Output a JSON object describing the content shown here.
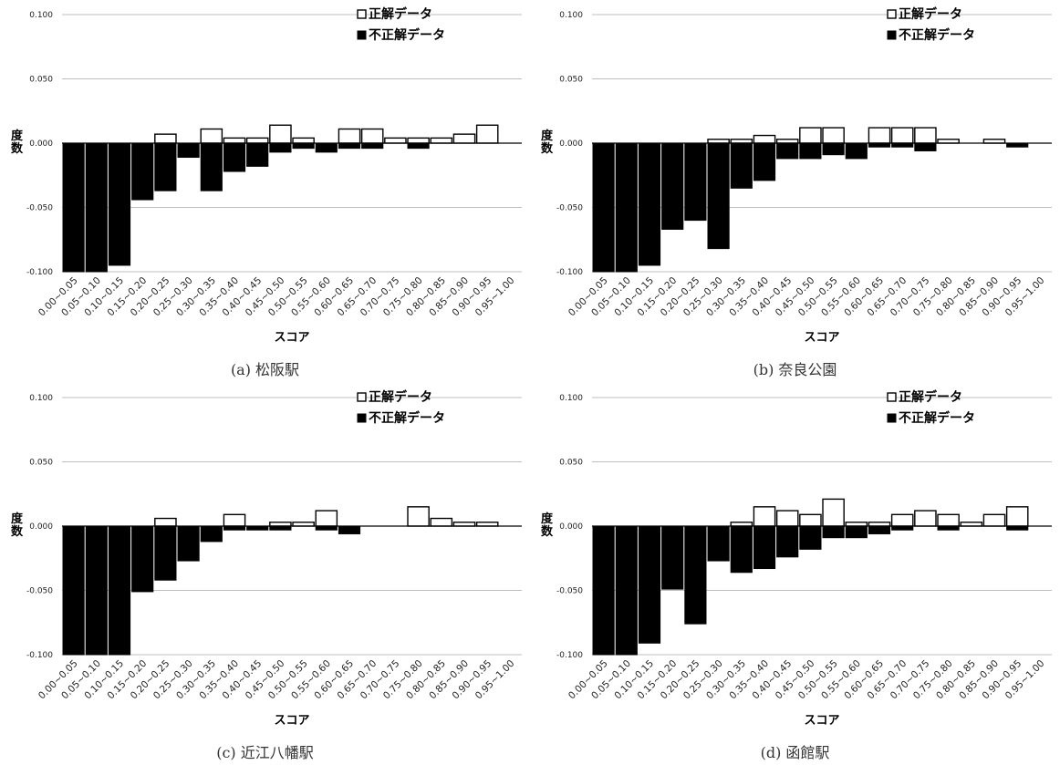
{
  "chart_data": [
    {
      "type": "bar",
      "caption": "(a) 松阪駅",
      "ylabel": "度数",
      "xlabel": "スコア",
      "ylim": [
        -0.1,
        0.1
      ],
      "yticks": [
        "0.100",
        "0.050",
        "0.000",
        "-0.050",
        "-0.100"
      ],
      "legend_position": "top-right",
      "grid": true,
      "categories": [
        "0.00~0.05",
        "0.05~0.10",
        "0.10~0.15",
        "0.15~0.20",
        "0.20~0.25",
        "0.25~0.30",
        "0.30~0.35",
        "0.35~0.40",
        "0.40~0.45",
        "0.45~0.50",
        "0.50~0.55",
        "0.55~0.60",
        "0.60~0.65",
        "0.65~0.70",
        "0.70~0.75",
        "0.75~0.80",
        "0.80~0.85",
        "0.85~0.90",
        "0.90~0.95",
        "0.95~1.00"
      ],
      "series": [
        {
          "name": "正解データ",
          "color": "#ffffff",
          "values": [
            0,
            0,
            0,
            0,
            0.007,
            0,
            0.011,
            0.004,
            0.004,
            0.014,
            0.004,
            0,
            0.011,
            0.011,
            0.004,
            0.004,
            0.004,
            0.007,
            0.014,
            0
          ]
        },
        {
          "name": "不正解データ",
          "color": "#000000",
          "values": [
            -0.1,
            -0.1,
            -0.095,
            -0.044,
            -0.037,
            -0.011,
            -0.037,
            -0.022,
            -0.018,
            -0.007,
            -0.004,
            -0.007,
            -0.004,
            -0.004,
            0,
            -0.004,
            0,
            0,
            0,
            0
          ]
        }
      ]
    },
    {
      "type": "bar",
      "caption": "(b) 奈良公園",
      "ylabel": "度数",
      "xlabel": "スコア",
      "ylim": [
        -0.1,
        0.1
      ],
      "yticks": [
        "0.100",
        "0.050",
        "0.000",
        "-0.050",
        "-0.100"
      ],
      "legend_position": "top-right",
      "grid": true,
      "categories": [
        "0.00~0.05",
        "0.05~0.10",
        "0.10~0.15",
        "0.15~0.20",
        "0.20~0.25",
        "0.25~0.30",
        "0.30~0.35",
        "0.35~0.40",
        "0.40~0.45",
        "0.45~0.50",
        "0.50~0.55",
        "0.55~0.60",
        "0.60~0.65",
        "0.65~0.70",
        "0.70~0.75",
        "0.75~0.80",
        "0.80~0.85",
        "0.85~0.90",
        "0.90~0.95",
        "0.95~1.00"
      ],
      "series": [
        {
          "name": "正解データ",
          "color": "#ffffff",
          "values": [
            0,
            0,
            0,
            0,
            0,
            0.003,
            0.003,
            0.006,
            0.003,
            0.012,
            0.012,
            0,
            0.012,
            0.012,
            0.012,
            0.003,
            0,
            0.003,
            0,
            0
          ]
        },
        {
          "name": "不正解データ",
          "color": "#000000",
          "values": [
            -0.1,
            -0.1,
            -0.095,
            -0.067,
            -0.06,
            -0.082,
            -0.035,
            -0.029,
            -0.012,
            -0.012,
            -0.009,
            -0.012,
            -0.003,
            -0.003,
            -0.006,
            0,
            0,
            0,
            -0.003,
            0
          ]
        }
      ]
    },
    {
      "type": "bar",
      "caption": "(c) 近江八幡駅",
      "ylabel": "度数",
      "xlabel": "スコア",
      "ylim": [
        -0.1,
        0.1
      ],
      "yticks": [
        "0.100",
        "0.050",
        "0.000",
        "-0.050",
        "-0.100"
      ],
      "legend_position": "top-right",
      "grid": true,
      "categories": [
        "0.00~0.05",
        "0.05~0.10",
        "0.10~0.15",
        "0.15~0.20",
        "0.20~0.25",
        "0.25~0.30",
        "0.30~0.35",
        "0.35~0.40",
        "0.40~0.45",
        "0.45~0.50",
        "0.50~0.55",
        "0.55~0.60",
        "0.60~0.65",
        "0.65~0.70",
        "0.70~0.75",
        "0.75~0.80",
        "0.80~0.85",
        "0.85~0.90",
        "0.90~0.95",
        "0.95~1.00"
      ],
      "series": [
        {
          "name": "正解データ",
          "color": "#ffffff",
          "values": [
            0,
            0,
            0,
            0,
            0.006,
            0,
            0,
            0.009,
            0,
            0.003,
            0.003,
            0.012,
            0,
            0,
            0,
            0.015,
            0.006,
            0.003,
            0.003,
            0
          ]
        },
        {
          "name": "不正解データ",
          "color": "#000000",
          "values": [
            -0.1,
            -0.1,
            -0.1,
            -0.051,
            -0.042,
            -0.027,
            -0.012,
            -0.003,
            -0.003,
            -0.003,
            0,
            -0.003,
            -0.006,
            0,
            0,
            0,
            0,
            0,
            0,
            0
          ]
        }
      ]
    },
    {
      "type": "bar",
      "caption": "(d) 函館駅",
      "ylabel": "度数",
      "xlabel": "スコア",
      "ylim": [
        -0.1,
        0.1
      ],
      "yticks": [
        "0.100",
        "0.050",
        "0.000",
        "-0.050",
        "-0.100"
      ],
      "legend_position": "top-right",
      "grid": true,
      "categories": [
        "0.00~0.05",
        "0.05~0.10",
        "0.10~0.15",
        "0.15~0.20",
        "0.20~0.25",
        "0.25~0.30",
        "0.30~0.35",
        "0.35~0.40",
        "0.40~0.45",
        "0.45~0.50",
        "0.50~0.55",
        "0.55~0.60",
        "0.60~0.65",
        "0.65~0.70",
        "0.70~0.75",
        "0.75~0.80",
        "0.80~0.85",
        "0.85~0.90",
        "0.90~0.95",
        "0.95~1.00"
      ],
      "series": [
        {
          "name": "正解データ",
          "color": "#ffffff",
          "values": [
            0,
            0,
            0,
            0,
            0,
            0,
            0.003,
            0.015,
            0.012,
            0.009,
            0.021,
            0.003,
            0.003,
            0.009,
            0.012,
            0.009,
            0.003,
            0.009,
            0.015,
            0
          ]
        },
        {
          "name": "不正解データ",
          "color": "#000000",
          "values": [
            -0.1,
            -0.1,
            -0.091,
            -0.049,
            -0.076,
            -0.027,
            -0.036,
            -0.033,
            -0.024,
            -0.018,
            -0.009,
            -0.009,
            -0.006,
            -0.003,
            0,
            -0.003,
            0,
            0,
            -0.003,
            0
          ]
        }
      ]
    }
  ]
}
